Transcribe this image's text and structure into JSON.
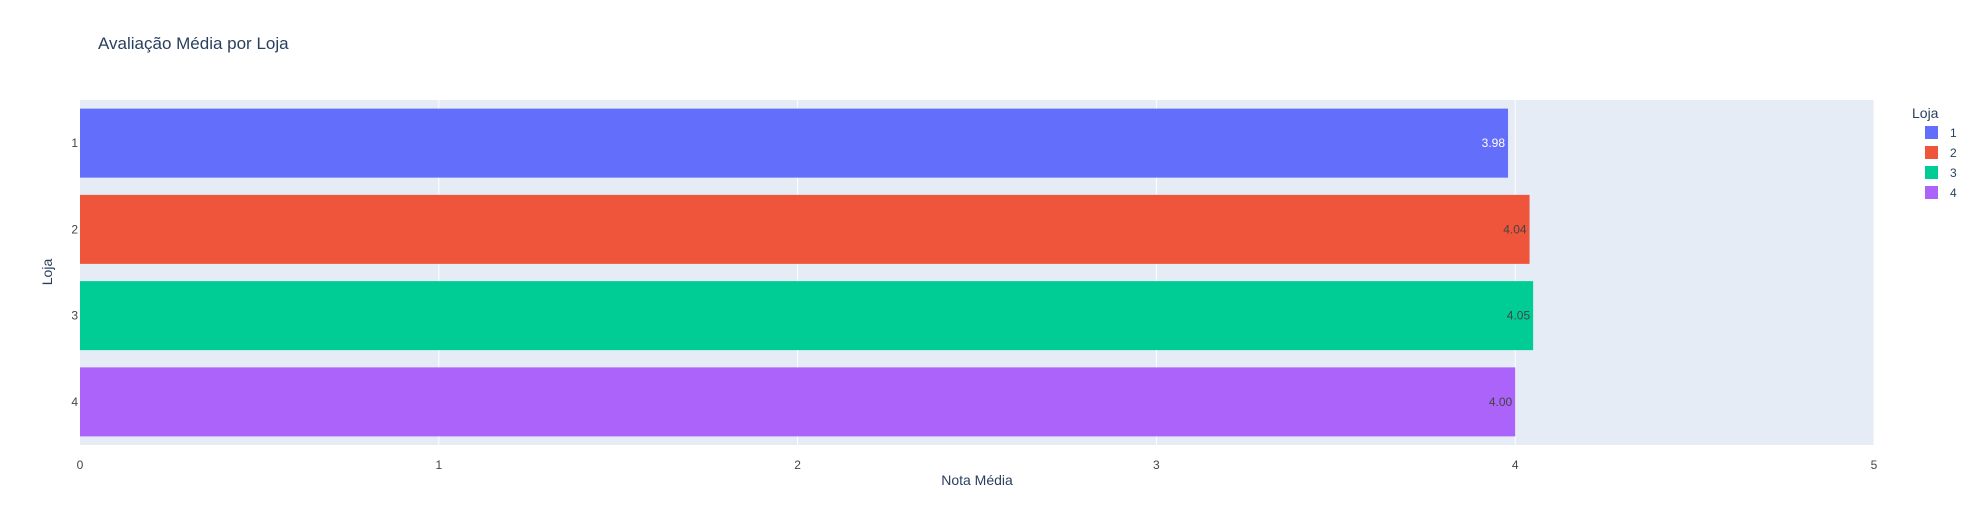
{
  "chart_data": {
    "type": "bar",
    "orientation": "horizontal",
    "title": "Avaliação Média por Loja",
    "xlabel": "Nota Média",
    "ylabel": "Loja",
    "xlim": [
      0,
      5
    ],
    "xticks": [
      "0",
      "1",
      "2",
      "3",
      "4",
      "5"
    ],
    "categories": [
      "1",
      "2",
      "3",
      "4"
    ],
    "values": [
      3.98,
      4.04,
      4.05,
      4.0
    ],
    "data_labels": [
      "3.98",
      "4.04",
      "4.05",
      "4.00"
    ],
    "colors": [
      "#636efa",
      "#ef553b",
      "#00cc96",
      "#ab63fa"
    ],
    "label_colors": [
      "#ffffff",
      "#444444",
      "#444444",
      "#444444"
    ],
    "grid": true,
    "plot_background": "#e5ecf6",
    "legend": {
      "title": "Loja",
      "placement": "top-right",
      "entries": [
        "1",
        "2",
        "3",
        "4"
      ]
    }
  }
}
